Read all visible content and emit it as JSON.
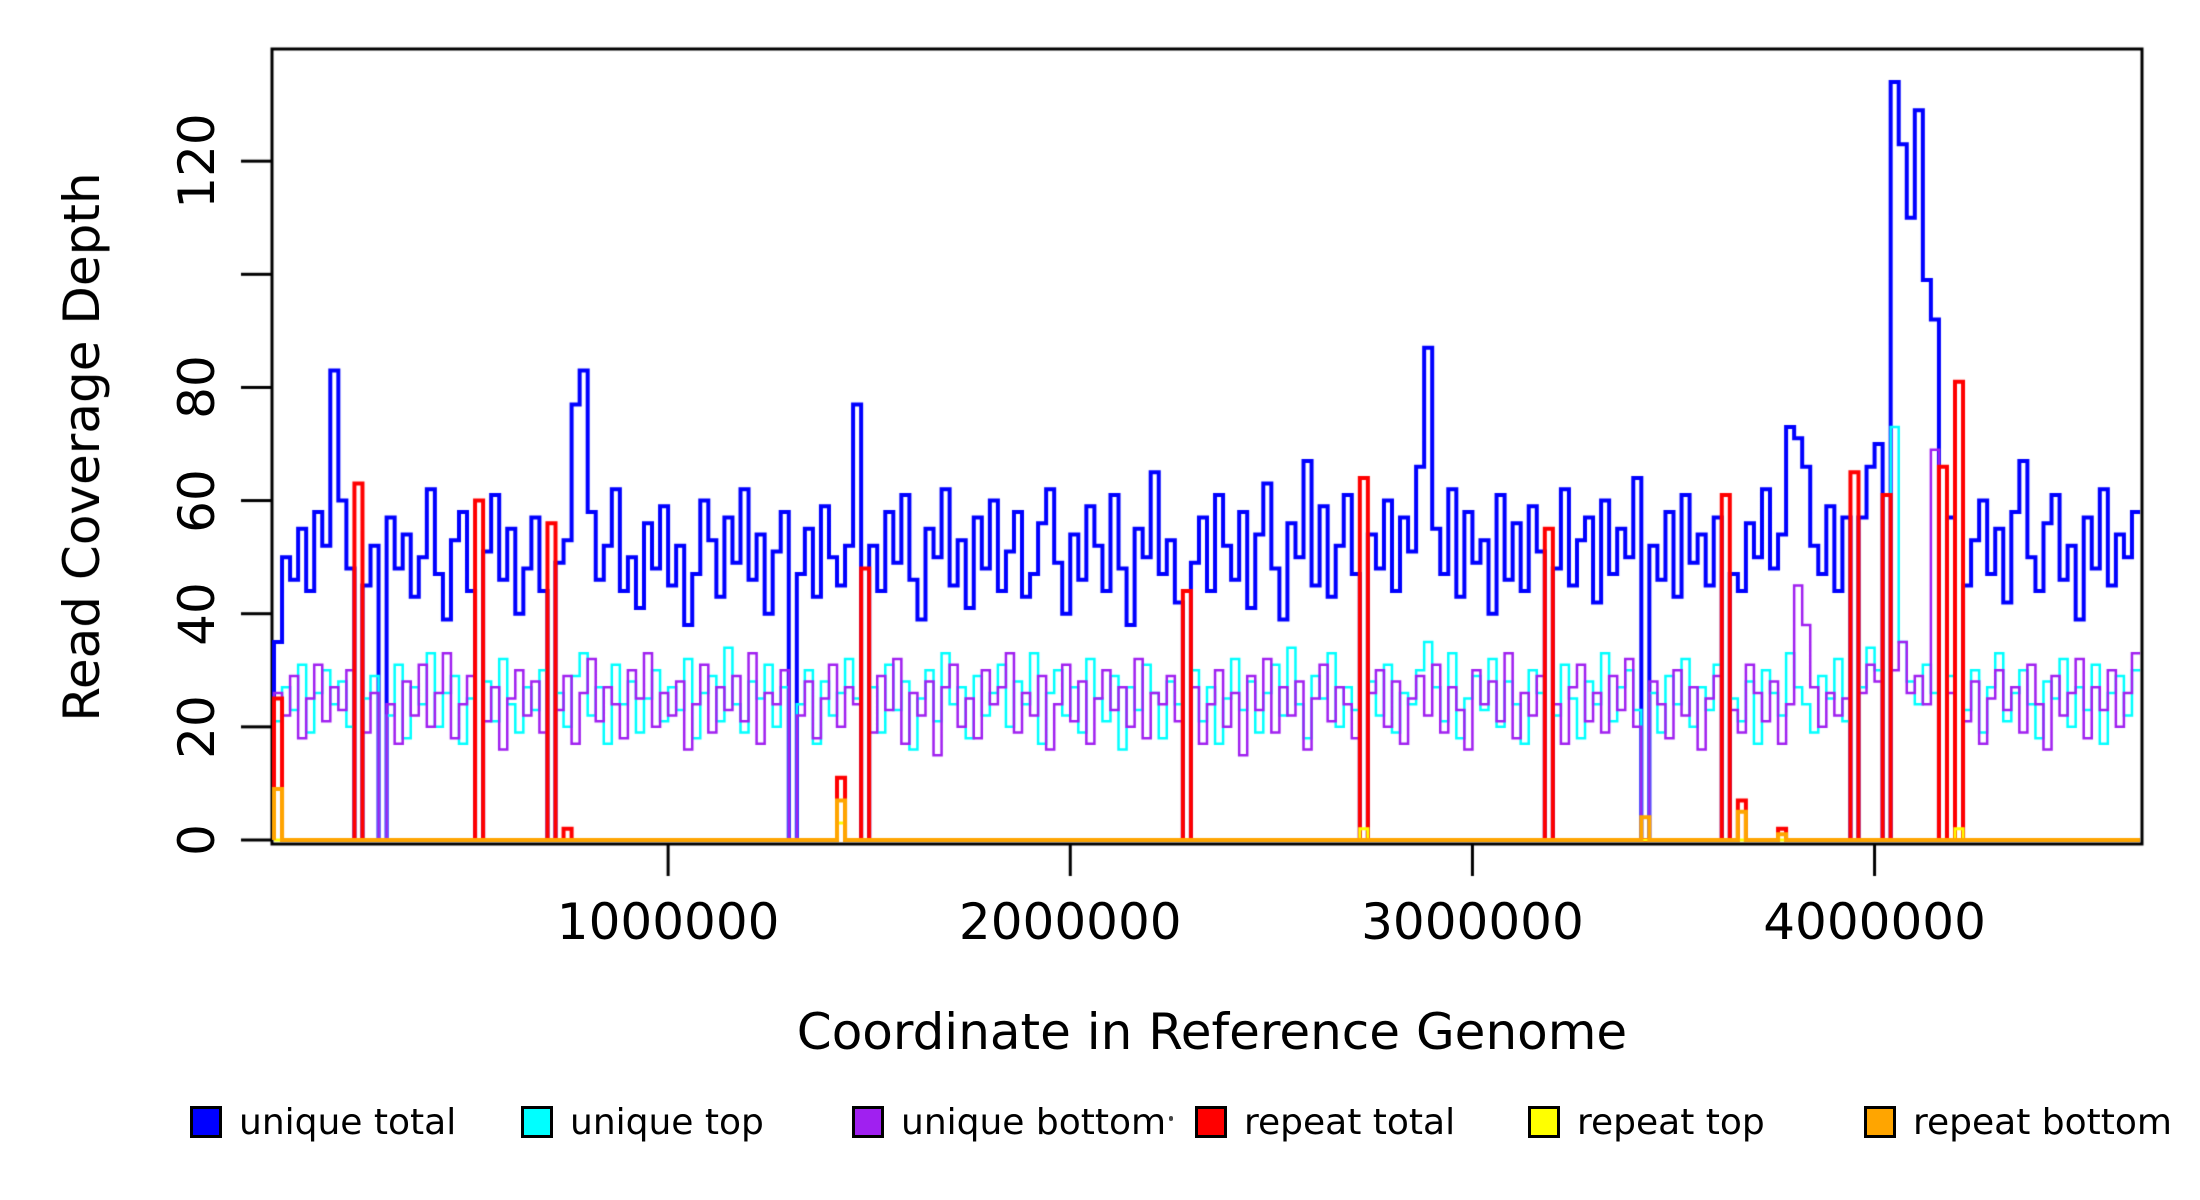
{
  "figure": {
    "y_axis": {
      "title": "Read Coverage Depth",
      "ticks": [
        {
          "value": 0,
          "label": "0"
        },
        {
          "value": 20,
          "label": "20"
        },
        {
          "value": 40,
          "label": "40"
        },
        {
          "value": 60,
          "label": "60"
        },
        {
          "value": 80,
          "label": "80"
        },
        {
          "value": 100,
          "label": ""
        },
        {
          "value": 120,
          "label": "120"
        }
      ]
    },
    "x_axis": {
      "title": "Coordinate in Reference Genome",
      "ticks": [
        {
          "value": 1000000,
          "label": "1000000"
        },
        {
          "value": 2000000,
          "label": "2000000"
        },
        {
          "value": 3000000,
          "label": "3000000"
        },
        {
          "value": 4000000,
          "label": "4000000"
        }
      ]
    },
    "legend": [
      {
        "label": "unique total",
        "color": "#0000FF"
      },
      {
        "label": "unique top",
        "color": "#00FFFF"
      },
      {
        "label": "unique bottom",
        "color": "#A020F0"
      },
      {
        "label": "repeat total",
        "color": "#FF0000"
      },
      {
        "label": "repeat top",
        "color": "#FFFF00"
      },
      {
        "label": "repeat bottom",
        "color": "#FFA500"
      }
    ]
  },
  "chart_data": {
    "type": "line",
    "step": true,
    "title": "",
    "xlabel": "Coordinate in Reference Genome",
    "ylabel": "Read Coverage Depth",
    "xlim": [
      20000,
      4660000
    ],
    "ylim": [
      0,
      140
    ],
    "grid": false,
    "legend_position": "bottom",
    "x_start": 20000,
    "bin_size": 20000,
    "bins": 232,
    "series": [
      {
        "name": "unique total",
        "color": "#0000FF",
        "values": [
          35,
          50,
          46,
          55,
          44,
          58,
          52,
          83,
          60,
          48,
          0,
          45,
          52,
          0,
          57,
          48,
          54,
          43,
          50,
          62,
          47,
          39,
          53,
          58,
          44,
          0,
          51,
          61,
          46,
          55,
          40,
          48,
          57,
          44,
          0,
          49,
          53,
          77,
          83,
          58,
          46,
          52,
          62,
          44,
          50,
          41,
          56,
          48,
          59,
          45,
          52,
          38,
          47,
          60,
          53,
          43,
          57,
          49,
          62,
          46,
          54,
          40,
          51,
          58,
          0,
          47,
          55,
          43,
          59,
          50,
          45,
          52,
          77,
          0,
          52,
          44,
          58,
          49,
          61,
          46,
          39,
          55,
          50,
          62,
          45,
          53,
          41,
          57,
          48,
          60,
          44,
          51,
          58,
          43,
          47,
          56,
          62,
          49,
          40,
          54,
          46,
          59,
          52,
          44,
          61,
          48,
          38,
          55,
          50,
          65,
          47,
          53,
          42,
          0,
          49,
          57,
          44,
          61,
          52,
          46,
          58,
          41,
          54,
          63,
          48,
          39,
          56,
          50,
          67,
          45,
          59,
          43,
          52,
          61,
          47,
          0,
          54,
          48,
          60,
          44,
          57,
          51,
          66,
          87,
          55,
          47,
          62,
          43,
          58,
          49,
          53,
          40,
          61,
          46,
          56,
          44,
          59,
          51,
          0,
          48,
          62,
          45,
          53,
          57,
          42,
          60,
          47,
          55,
          50,
          64,
          0,
          52,
          46,
          58,
          43,
          61,
          49,
          54,
          45,
          57,
          0,
          47,
          44,
          56,
          50,
          62,
          48,
          54,
          73,
          71,
          66,
          52,
          47,
          59,
          44,
          57,
          0,
          57,
          66,
          70,
          0,
          134,
          123,
          110,
          129,
          99,
          92,
          0,
          57,
          0,
          45,
          53,
          60,
          47,
          55,
          42,
          58,
          67,
          50,
          44,
          56,
          61,
          46,
          52,
          39,
          57,
          48,
          62,
          45,
          54,
          50,
          58
        ]
      },
      {
        "name": "unique top",
        "color": "#00FFFF",
        "values": [
          21,
          27,
          23,
          31,
          19,
          26,
          30,
          24,
          28,
          20,
          0,
          25,
          29,
          0,
          22,
          31,
          18,
          27,
          24,
          33,
          20,
          26,
          29,
          17,
          25,
          0,
          28,
          21,
          32,
          24,
          19,
          27,
          23,
          30,
          0,
          26,
          20,
          29,
          33,
          22,
          27,
          17,
          31,
          24,
          28,
          19,
          25,
          30,
          21,
          27,
          23,
          32,
          18,
          26,
          29,
          21,
          34,
          24,
          19,
          28,
          25,
          31,
          20,
          27,
          0,
          24,
          30,
          17,
          28,
          22,
          26,
          32,
          25,
          0,
          27,
          19,
          31,
          23,
          28,
          16,
          25,
          30,
          21,
          33,
          24,
          27,
          18,
          29,
          22,
          26,
          31,
          20,
          28,
          24,
          33,
          17,
          26,
          30,
          22,
          27,
          19,
          32,
          25,
          21,
          29,
          16,
          27,
          23,
          31,
          26,
          18,
          28,
          24,
          0,
          30,
          21,
          27,
          17,
          25,
          32,
          23,
          28,
          19,
          26,
          31,
          22,
          34,
          24,
          18,
          29,
          25,
          33,
          20,
          27,
          23,
          0,
          28,
          22,
          31,
          19,
          26,
          24,
          30,
          35,
          27,
          21,
          33,
          18,
          25,
          29,
          23,
          32,
          20,
          28,
          24,
          17,
          30,
          26,
          0,
          22,
          31,
          25,
          18,
          28,
          24,
          33,
          21,
          27,
          30,
          23,
          0,
          26,
          19,
          29,
          24,
          32,
          20,
          27,
          23,
          31,
          0,
          25,
          21,
          28,
          17,
          30,
          26,
          22,
          33,
          27,
          24,
          19,
          29,
          25,
          32,
          21,
          0,
          27,
          34,
          30,
          0,
          73,
          35,
          28,
          24,
          31,
          26,
          0,
          29,
          0,
          23,
          30,
          19,
          27,
          33,
          21,
          26,
          30,
          24,
          18,
          28,
          25,
          32,
          20,
          27,
          23,
          31,
          17,
          26,
          29,
          22,
          30
        ]
      },
      {
        "name": "unique bottom",
        "color": "#A020F0",
        "values": [
          26,
          22,
          29,
          18,
          25,
          31,
          21,
          27,
          23,
          30,
          0,
          19,
          26,
          0,
          24,
          17,
          28,
          22,
          31,
          20,
          26,
          33,
          18,
          24,
          29,
          0,
          21,
          27,
          16,
          25,
          30,
          22,
          28,
          19,
          0,
          23,
          29,
          17,
          26,
          32,
          21,
          27,
          24,
          18,
          30,
          25,
          33,
          20,
          26,
          22,
          28,
          16,
          24,
          31,
          19,
          27,
          23,
          29,
          21,
          33,
          17,
          26,
          24,
          30,
          0,
          22,
          28,
          18,
          25,
          31,
          20,
          27,
          24,
          0,
          19,
          29,
          23,
          32,
          17,
          26,
          22,
          28,
          15,
          27,
          31,
          20,
          25,
          18,
          30,
          24,
          27,
          33,
          19,
          26,
          22,
          29,
          16,
          24,
          31,
          21,
          28,
          17,
          25,
          30,
          23,
          27,
          20,
          32,
          18,
          26,
          24,
          29,
          21,
          0,
          27,
          17,
          24,
          30,
          20,
          26,
          15,
          29,
          23,
          32,
          19,
          27,
          22,
          28,
          16,
          25,
          31,
          21,
          27,
          24,
          18,
          0,
          26,
          30,
          20,
          28,
          17,
          25,
          29,
          22,
          31,
          19,
          27,
          23,
          16,
          30,
          24,
          28,
          21,
          33,
          18,
          26,
          22,
          29,
          0,
          24,
          17,
          27,
          31,
          21,
          26,
          19,
          29,
          23,
          32,
          20,
          0,
          28,
          24,
          18,
          30,
          22,
          27,
          16,
          25,
          29,
          0,
          23,
          19,
          31,
          26,
          21,
          28,
          17,
          24,
          45,
          38,
          27,
          20,
          26,
          22,
          25,
          0,
          26,
          31,
          28,
          0,
          30,
          35,
          26,
          29,
          24,
          69,
          0,
          26,
          0,
          21,
          28,
          17,
          25,
          30,
          23,
          27,
          19,
          31,
          24,
          16,
          29,
          22,
          26,
          32,
          18,
          27,
          23,
          30,
          20,
          26,
          33
        ]
      },
      {
        "name": "repeat total",
        "color": "#FF0000",
        "baseline": 0,
        "spikes": {
          "0": 25,
          "10": 63,
          "25": 60,
          "34": 56,
          "36": 2,
          "70": 11,
          "73": 48,
          "113": 44,
          "135": 64,
          "158": 55,
          "180": 61,
          "182": 7,
          "187": 2,
          "196": 65,
          "200": 61,
          "207": 66,
          "209": 81
        }
      },
      {
        "name": "repeat top",
        "color": "#FFFF00",
        "baseline": 0,
        "spikes": {
          "70": 3,
          "135": 2,
          "209": 2
        }
      },
      {
        "name": "repeat bottom",
        "color": "#FFA500",
        "baseline": 0,
        "spikes": {
          "0": 9,
          "70": 7,
          "170": 4,
          "182": 5,
          "187": 1
        }
      }
    ]
  }
}
